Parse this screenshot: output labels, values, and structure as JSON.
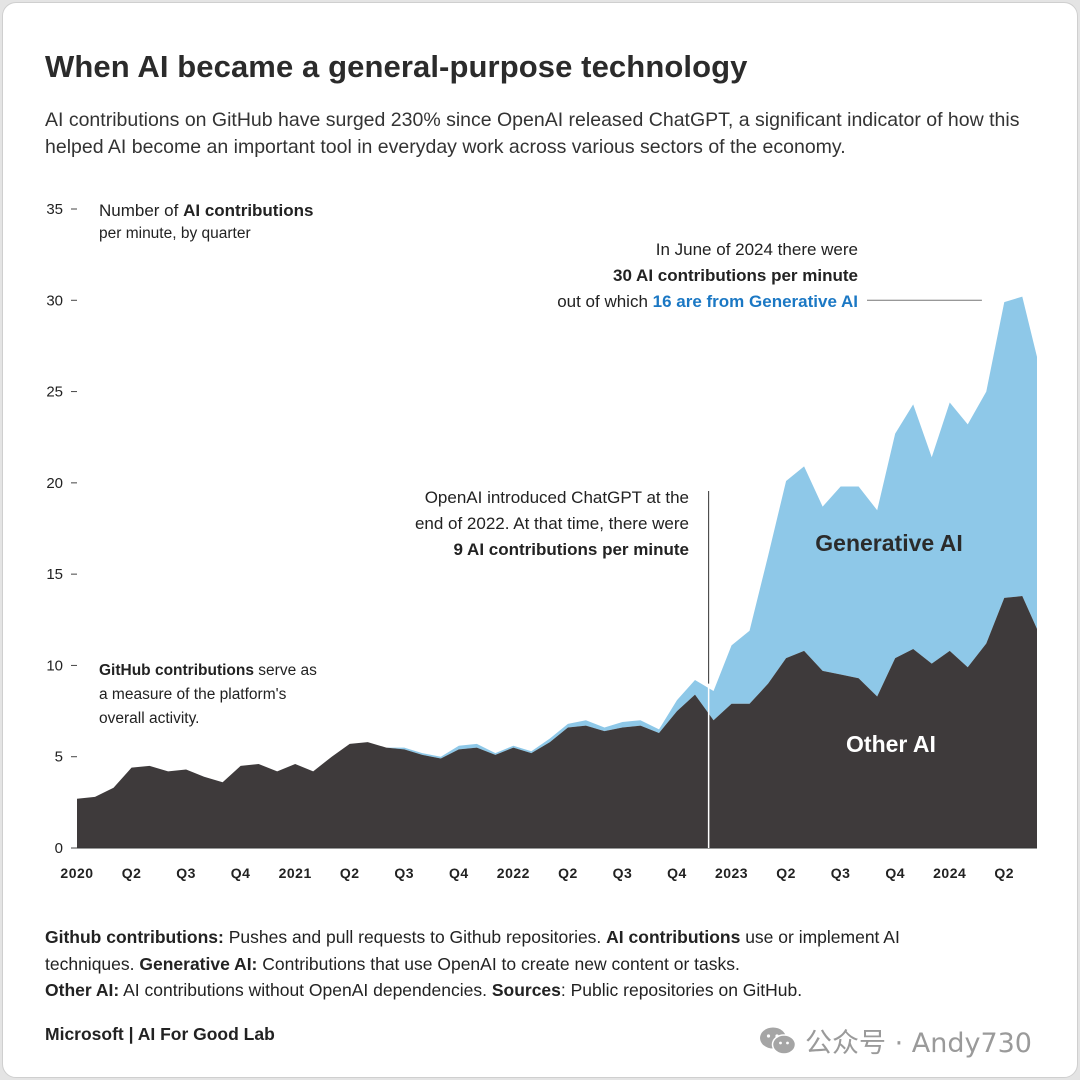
{
  "header": {
    "title": "When AI became a general-purpose technology",
    "subtitle": "AI contributions on GitHub have surged 230% since OpenAI released ChatGPT, a significant indicator of how this helped AI become an important tool in everyday work across various sectors of the economy."
  },
  "chart_data": {
    "type": "area",
    "stacked": true,
    "ylabel": [
      "Number of ",
      "AI contributions",
      "per minute, by quarter"
    ],
    "ylim": [
      0,
      35
    ],
    "yticks": [
      "0",
      "5",
      "10",
      "15",
      "20",
      "25",
      "30",
      "35"
    ],
    "ytick_values": [
      0,
      5,
      10,
      15,
      20,
      25,
      30,
      35
    ],
    "xticks": [
      "2020",
      "Q2",
      "Q3",
      "Q4",
      "2021",
      "Q2",
      "Q3",
      "Q4",
      "2022",
      "Q2",
      "Q3",
      "Q4",
      "2023",
      "Q2",
      "Q3",
      "Q4",
      "2024",
      "Q2"
    ],
    "xtick_positions": [
      0,
      1,
      2,
      3,
      4,
      5,
      6,
      7,
      8,
      9,
      10,
      11,
      12,
      13,
      14,
      15,
      16,
      17
    ],
    "xlim": [
      0,
      17.6
    ],
    "x": [
      0,
      0.33,
      0.67,
      1,
      1.33,
      1.67,
      2,
      2.33,
      2.67,
      3,
      3.33,
      3.67,
      4,
      4.33,
      4.67,
      5,
      5.33,
      5.67,
      6,
      6.33,
      6.67,
      7,
      7.33,
      7.67,
      8,
      8.33,
      8.67,
      9,
      9.33,
      9.67,
      10,
      10.33,
      10.67,
      11,
      11.33,
      11.67,
      12,
      12.33,
      12.67,
      13,
      13.33,
      13.67,
      14,
      14.33,
      14.67,
      15,
      15.33,
      15.67,
      16,
      16.33,
      16.67,
      17,
      17.33,
      17.6
    ],
    "series": [
      {
        "name": "Other AI",
        "color": "#3e3a3b",
        "values": [
          2.7,
          2.8,
          3.3,
          4.4,
          4.5,
          4.2,
          4.3,
          3.9,
          3.6,
          4.5,
          4.6,
          4.2,
          4.6,
          4.2,
          5.0,
          5.7,
          5.8,
          5.5,
          5.4,
          5.1,
          4.9,
          5.4,
          5.5,
          5.1,
          5.5,
          5.2,
          5.8,
          6.6,
          6.7,
          6.4,
          6.6,
          6.7,
          6.3,
          7.5,
          8.4,
          7.0,
          7.9,
          7.9,
          9.0,
          10.4,
          10.8,
          9.7,
          9.5,
          9.3,
          8.3,
          10.4,
          10.9,
          10.1,
          10.8,
          9.9,
          11.2,
          13.7,
          13.8,
          12.0
        ]
      },
      {
        "name": "Generative AI",
        "color": "#8ec8e8",
        "values": [
          0,
          0,
          0,
          0,
          0,
          0,
          0,
          0,
          0,
          0,
          0,
          0,
          0,
          0,
          0,
          0,
          0,
          0,
          0.1,
          0.1,
          0.1,
          0.2,
          0.2,
          0.1,
          0.1,
          0.1,
          0.2,
          0.2,
          0.3,
          0.2,
          0.3,
          0.3,
          0.2,
          0.6,
          0.8,
          1.6,
          3.2,
          4.0,
          7.0,
          9.7,
          10.1,
          9.0,
          10.3,
          10.5,
          10.2,
          12.3,
          13.4,
          11.3,
          13.6,
          13.3,
          13.8,
          16.2,
          16.4,
          14.9
        ]
      }
    ],
    "series_labels": [
      "Generative AI",
      "Other AI"
    ],
    "chatgpt_marker_x": 11.58,
    "callout_x": 16.7,
    "callout_y": 30,
    "annotations": {
      "chatgpt": {
        "line1": "OpenAI introduced ChatGPT at the",
        "line2": "end of 2022. At that time, there were",
        "line3": "9 AI contributions per minute"
      },
      "june2024": {
        "line1": "In June of 2024 there were",
        "line2": "30 AI contributions per minute",
        "line3_prefix": "out of which ",
        "line3_highlight": "16 are from Generative AI"
      },
      "github": {
        "line1_bold": "GitHub contributions",
        "line1_rest": " serve as",
        "line2": "a measure of the platform's",
        "line3": "overall activity."
      }
    }
  },
  "footer": {
    "line1_b1": "Github contributions:",
    "line1_t1": " Pushes and pull requests to Github repositories. ",
    "line1_b2": "AI contributions",
    "line1_t2": " use or implement AI",
    "line2_t1": "techniques. ",
    "line2_b1": "Generative AI:",
    "line2_t2": " Contributions that use OpenAI to create new content or tasks.",
    "line3_b1": "Other AI:",
    "line3_t1": " AI contributions without OpenAI dependencies. ",
    "line3_b2": "Sources",
    "line3_t2": ": Public repositories on GitHub.",
    "brand": "Microsoft | AI For Good Lab"
  },
  "watermark": {
    "text": "公众号 · Andy730",
    "icon": "wechat-icon",
    "color": "#9a9a9a"
  }
}
